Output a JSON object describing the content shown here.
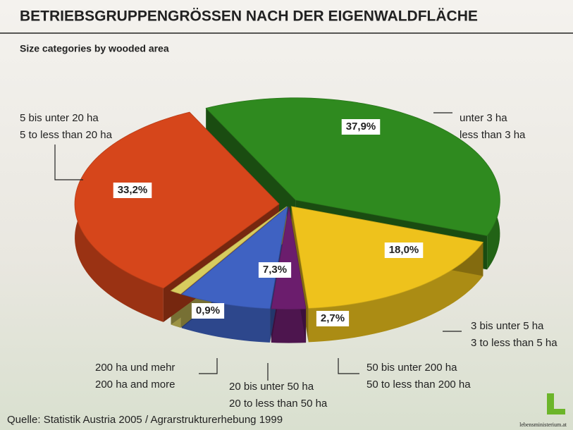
{
  "chart_data": {
    "type": "pie",
    "title": "BETRIEBSGRUPPENGRÖSSEN NACH DER EIGENWALDFLÄCHE",
    "subtitle": "Size categories by wooded area",
    "categories": [
      "unter 3 ha",
      "3 bis unter 5 ha",
      "50 bis unter 200 ha",
      "20 bis unter 50 ha",
      "200 ha und mehr",
      "5 bis unter 20 ha"
    ],
    "categories_en": [
      "less than 3 ha",
      "3 to less than 5 ha",
      "50 to less than 200 ha",
      "20 to less than 50 ha",
      "200 ha and more",
      "5 to less than 20 ha"
    ],
    "values": [
      37.9,
      18.0,
      2.7,
      7.3,
      0.9,
      33.2
    ],
    "value_labels": [
      "37,9%",
      "18,0%",
      "2,7%",
      "7,3%",
      "0,9%",
      "33,2%"
    ],
    "colors": [
      "#2f8a1f",
      "#eec21c",
      "#6b1d6d",
      "#3f62c2",
      "#d8cc5e",
      "#d6461b"
    ],
    "source": "Quelle: Statistik Austria 2005 / Agrarstrukturerhebung 1999",
    "logo": "lebensministerium.at"
  }
}
